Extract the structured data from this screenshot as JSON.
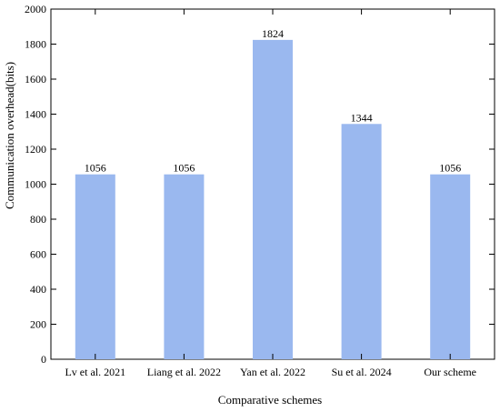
{
  "chart_data": {
    "type": "bar",
    "title": "",
    "xlabel": "Comparative schemes",
    "ylabel": "Communication overhead(bits)",
    "categories": [
      "Lv et al. 2021",
      "Liang et al. 2022",
      "Yan et al. 2022",
      "Su et al. 2024",
      "Our scheme"
    ],
    "values": [
      1056,
      1056,
      1824,
      1344,
      1056
    ],
    "data_labels": [
      "1056",
      "1056",
      "1824",
      "1344",
      "1056"
    ],
    "ylim": [
      0,
      2000
    ],
    "yticks": [
      0,
      200,
      400,
      600,
      800,
      1000,
      1200,
      1400,
      1600,
      1800,
      2000
    ],
    "grid": false,
    "legend": "none",
    "bar_color": "#9ab8ef",
    "axis_color": "#000000"
  }
}
